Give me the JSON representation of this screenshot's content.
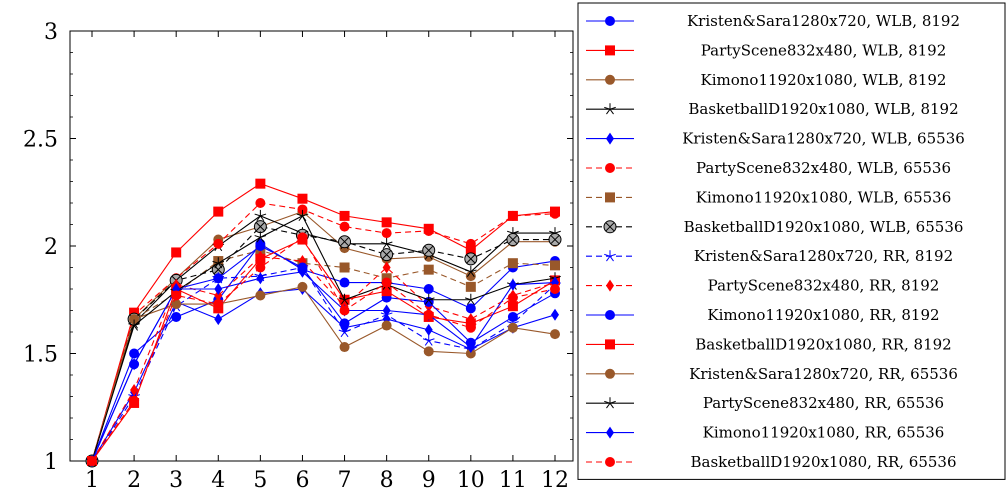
{
  "chart_data": {
    "type": "line",
    "title": "",
    "xlabel": "",
    "ylabel": "",
    "x": [
      1,
      2,
      3,
      4,
      5,
      6,
      7,
      8,
      9,
      10,
      11,
      12
    ],
    "xlim": [
      1,
      12
    ],
    "ylim": [
      1,
      3
    ],
    "y_ticks": [
      "1",
      "1.5",
      "2",
      "2.5",
      "3"
    ],
    "x_ticks": [
      "1",
      "2",
      "3",
      "4",
      "5",
      "6",
      "7",
      "8",
      "9",
      "10",
      "11",
      "12"
    ],
    "grid": false,
    "legend_position": "outside-right",
    "series": [
      {
        "name": "Kristen&Sara1280x720, WLB, 8192",
        "color": "#0000ff",
        "marker": "circle",
        "dashed": false,
        "values": [
          1,
          1.5,
          1.67,
          1.75,
          2.01,
          1.89,
          1.83,
          1.83,
          1.8,
          1.71,
          1.9,
          1.93
        ]
      },
      {
        "name": "PartyScene832x480, WLB, 8192",
        "color": "#ff0000",
        "marker": "square",
        "dashed": false,
        "values": [
          1,
          1.69,
          1.97,
          2.16,
          2.29,
          2.22,
          2.14,
          2.11,
          2.08,
          1.98,
          2.14,
          2.16
        ]
      },
      {
        "name": "Kimono11920x1080, WLB, 8192",
        "color": "#99582a",
        "marker": "circle",
        "dashed": false,
        "values": [
          1,
          1.66,
          1.85,
          2.03,
          2.09,
          2.16,
          1.99,
          1.94,
          1.95,
          1.86,
          2.02,
          2.02
        ]
      },
      {
        "name": "BasketballD1920x1080, WLB, 8192",
        "color": "#000000",
        "marker": "star",
        "dashed": false,
        "values": [
          1,
          1.64,
          1.84,
          2.0,
          2.14,
          2.06,
          2.01,
          2.01,
          1.96,
          1.88,
          2.06,
          2.06
        ]
      },
      {
        "name": "Kristen&Sara1280x720, WLB, 65536",
        "color": "#0000ff",
        "marker": "diamond",
        "dashed": false,
        "values": [
          1,
          1.32,
          1.74,
          1.66,
          1.78,
          1.8,
          1.62,
          1.66,
          1.61,
          1.52,
          1.62,
          1.68
        ]
      },
      {
        "name": "PartyScene832x480, WLB, 65536",
        "color": "#ff0000",
        "marker": "circle",
        "dashed": true,
        "values": [
          1,
          1.68,
          1.85,
          2.01,
          2.2,
          2.17,
          2.09,
          2.06,
          2.07,
          2.01,
          2.14,
          2.15
        ]
      },
      {
        "name": "Kimono11920x1080, WLB, 65536",
        "color": "#99582a",
        "marker": "square",
        "dashed": true,
        "values": [
          1,
          1.66,
          1.78,
          1.93,
          1.98,
          1.92,
          1.9,
          1.85,
          1.89,
          1.81,
          1.92,
          1.91
        ]
      },
      {
        "name": "BasketballD1920x1080, WLB, 65536",
        "color": "#000000",
        "marker": "circle-x",
        "dashed": true,
        "values": [
          1,
          1.66,
          1.84,
          1.89,
          2.09,
          2.05,
          2.02,
          1.96,
          1.98,
          1.94,
          2.03,
          2.03
        ]
      },
      {
        "name": "Kristen&Sara1280x720, RR, 8192",
        "color": "#0000ff",
        "marker": "star",
        "dashed": true,
        "values": [
          1,
          1.3,
          1.72,
          1.85,
          1.86,
          1.9,
          1.6,
          1.68,
          1.56,
          1.52,
          1.64,
          1.82
        ]
      },
      {
        "name": "PartyScene832x480, RR, 8192",
        "color": "#ff0000",
        "marker": "diamond",
        "dashed": true,
        "values": [
          1,
          1.33,
          1.82,
          1.77,
          1.95,
          1.93,
          1.72,
          1.9,
          1.72,
          1.66,
          1.77,
          1.83
        ]
      },
      {
        "name": "Kimono11920x1080, RR, 8192",
        "color": "#0000ff",
        "marker": "circle",
        "dashed": false,
        "values": [
          1,
          1.45,
          1.8,
          1.85,
          2.0,
          1.9,
          1.64,
          1.76,
          1.74,
          1.55,
          1.67,
          1.78
        ]
      },
      {
        "name": "BasketballD1920x1080, RR, 8192",
        "color": "#ff0000",
        "marker": "square",
        "dashed": false,
        "values": [
          1,
          1.27,
          1.8,
          1.71,
          1.94,
          2.03,
          1.75,
          1.79,
          1.67,
          1.64,
          1.72,
          1.84
        ]
      },
      {
        "name": "Kristen&Sara1280x720, RR, 65536",
        "color": "#99582a",
        "marker": "circle",
        "dashed": false,
        "values": [
          1,
          1.66,
          1.73,
          1.73,
          1.77,
          1.81,
          1.53,
          1.63,
          1.51,
          1.5,
          1.62,
          1.59
        ]
      },
      {
        "name": "PartyScene832x480, RR, 65536",
        "color": "#000000",
        "marker": "star",
        "dashed": false,
        "values": [
          1,
          1.63,
          1.79,
          1.92,
          2.04,
          2.14,
          1.75,
          1.82,
          1.75,
          1.75,
          1.82,
          1.85
        ]
      },
      {
        "name": "Kimono11920x1080, RR, 65536",
        "color": "#0000ff",
        "marker": "diamond",
        "dashed": false,
        "values": [
          1,
          1.45,
          1.8,
          1.8,
          1.85,
          1.88,
          1.7,
          1.7,
          1.68,
          1.53,
          1.82,
          1.83
        ]
      },
      {
        "name": "BasketballD1920x1080, RR, 65536",
        "color": "#ff0000",
        "marker": "circle",
        "dashed": true,
        "values": [
          1,
          1.28,
          1.77,
          1.73,
          1.9,
          2.04,
          1.7,
          1.83,
          1.68,
          1.62,
          1.76,
          1.8
        ]
      }
    ]
  }
}
